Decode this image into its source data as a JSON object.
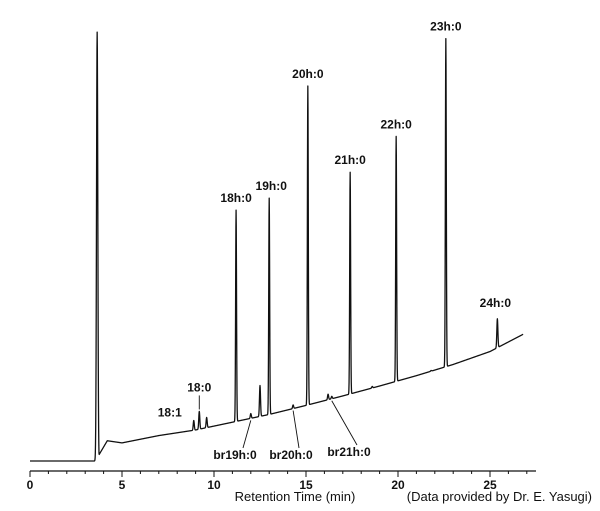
{
  "chart_data": {
    "type": "line",
    "title": "",
    "xlabel": "Retention Time (min)",
    "ylabel": "",
    "credit": "(Data provided by Dr. E. Yasugi)",
    "xlim": [
      0,
      27.5
    ],
    "ylim": [
      0,
      100
    ],
    "xticks": [
      0,
      5,
      10,
      15,
      20,
      25
    ],
    "grid": false,
    "legend": "none",
    "baseline": {
      "x": [
        0,
        3.55,
        4.2,
        5,
        7,
        9,
        11,
        13,
        15,
        17,
        19,
        21,
        23,
        25,
        26.8
      ],
      "y": [
        0,
        0,
        4.7,
        4.2,
        5.9,
        7.2,
        9.0,
        10.8,
        12.9,
        15.1,
        17.4,
        19.8,
        22.4,
        25.4,
        29.4
      ]
    },
    "solvent_peak": {
      "x": 3.65,
      "y": 99.5
    },
    "peaks": [
      {
        "label": "18:1",
        "x": 8.9,
        "y": 9.4,
        "labeled": true
      },
      {
        "label": "18:0",
        "x": 9.2,
        "y": 11.5,
        "labeled": true
      },
      {
        "label": "",
        "x": 9.6,
        "y": 10.1,
        "labeled": false
      },
      {
        "label": "18h:0",
        "x": 11.2,
        "y": 58.2,
        "labeled": true
      },
      {
        "label": "",
        "x": 12.5,
        "y": 17.5,
        "labeled": false
      },
      {
        "label": "19h:0",
        "x": 13.0,
        "y": 61.0,
        "labeled": true
      },
      {
        "label": "br19h:0",
        "x": 12.0,
        "y": 11.0,
        "labeled": true
      },
      {
        "label": "br20h:0",
        "x": 14.3,
        "y": 13.0,
        "labeled": true
      },
      {
        "label": "20h:0",
        "x": 15.1,
        "y": 87.0,
        "labeled": true
      },
      {
        "label": "",
        "x": 16.2,
        "y": 15.5,
        "labeled": false
      },
      {
        "label": "br21h:0",
        "x": 16.4,
        "y": 15.0,
        "labeled": true
      },
      {
        "label": "21h:0",
        "x": 17.4,
        "y": 67.0,
        "labeled": true
      },
      {
        "label": "",
        "x": 18.6,
        "y": 17.3,
        "labeled": false
      },
      {
        "label": "22h:0",
        "x": 19.9,
        "y": 75.3,
        "labeled": true
      },
      {
        "label": "",
        "x": 21.8,
        "y": 21.0,
        "labeled": false
      },
      {
        "label": "23h:0",
        "x": 22.6,
        "y": 98.0,
        "labeled": true
      },
      {
        "label": "24h:0",
        "x": 25.4,
        "y": 33.0,
        "labeled": true
      }
    ]
  }
}
